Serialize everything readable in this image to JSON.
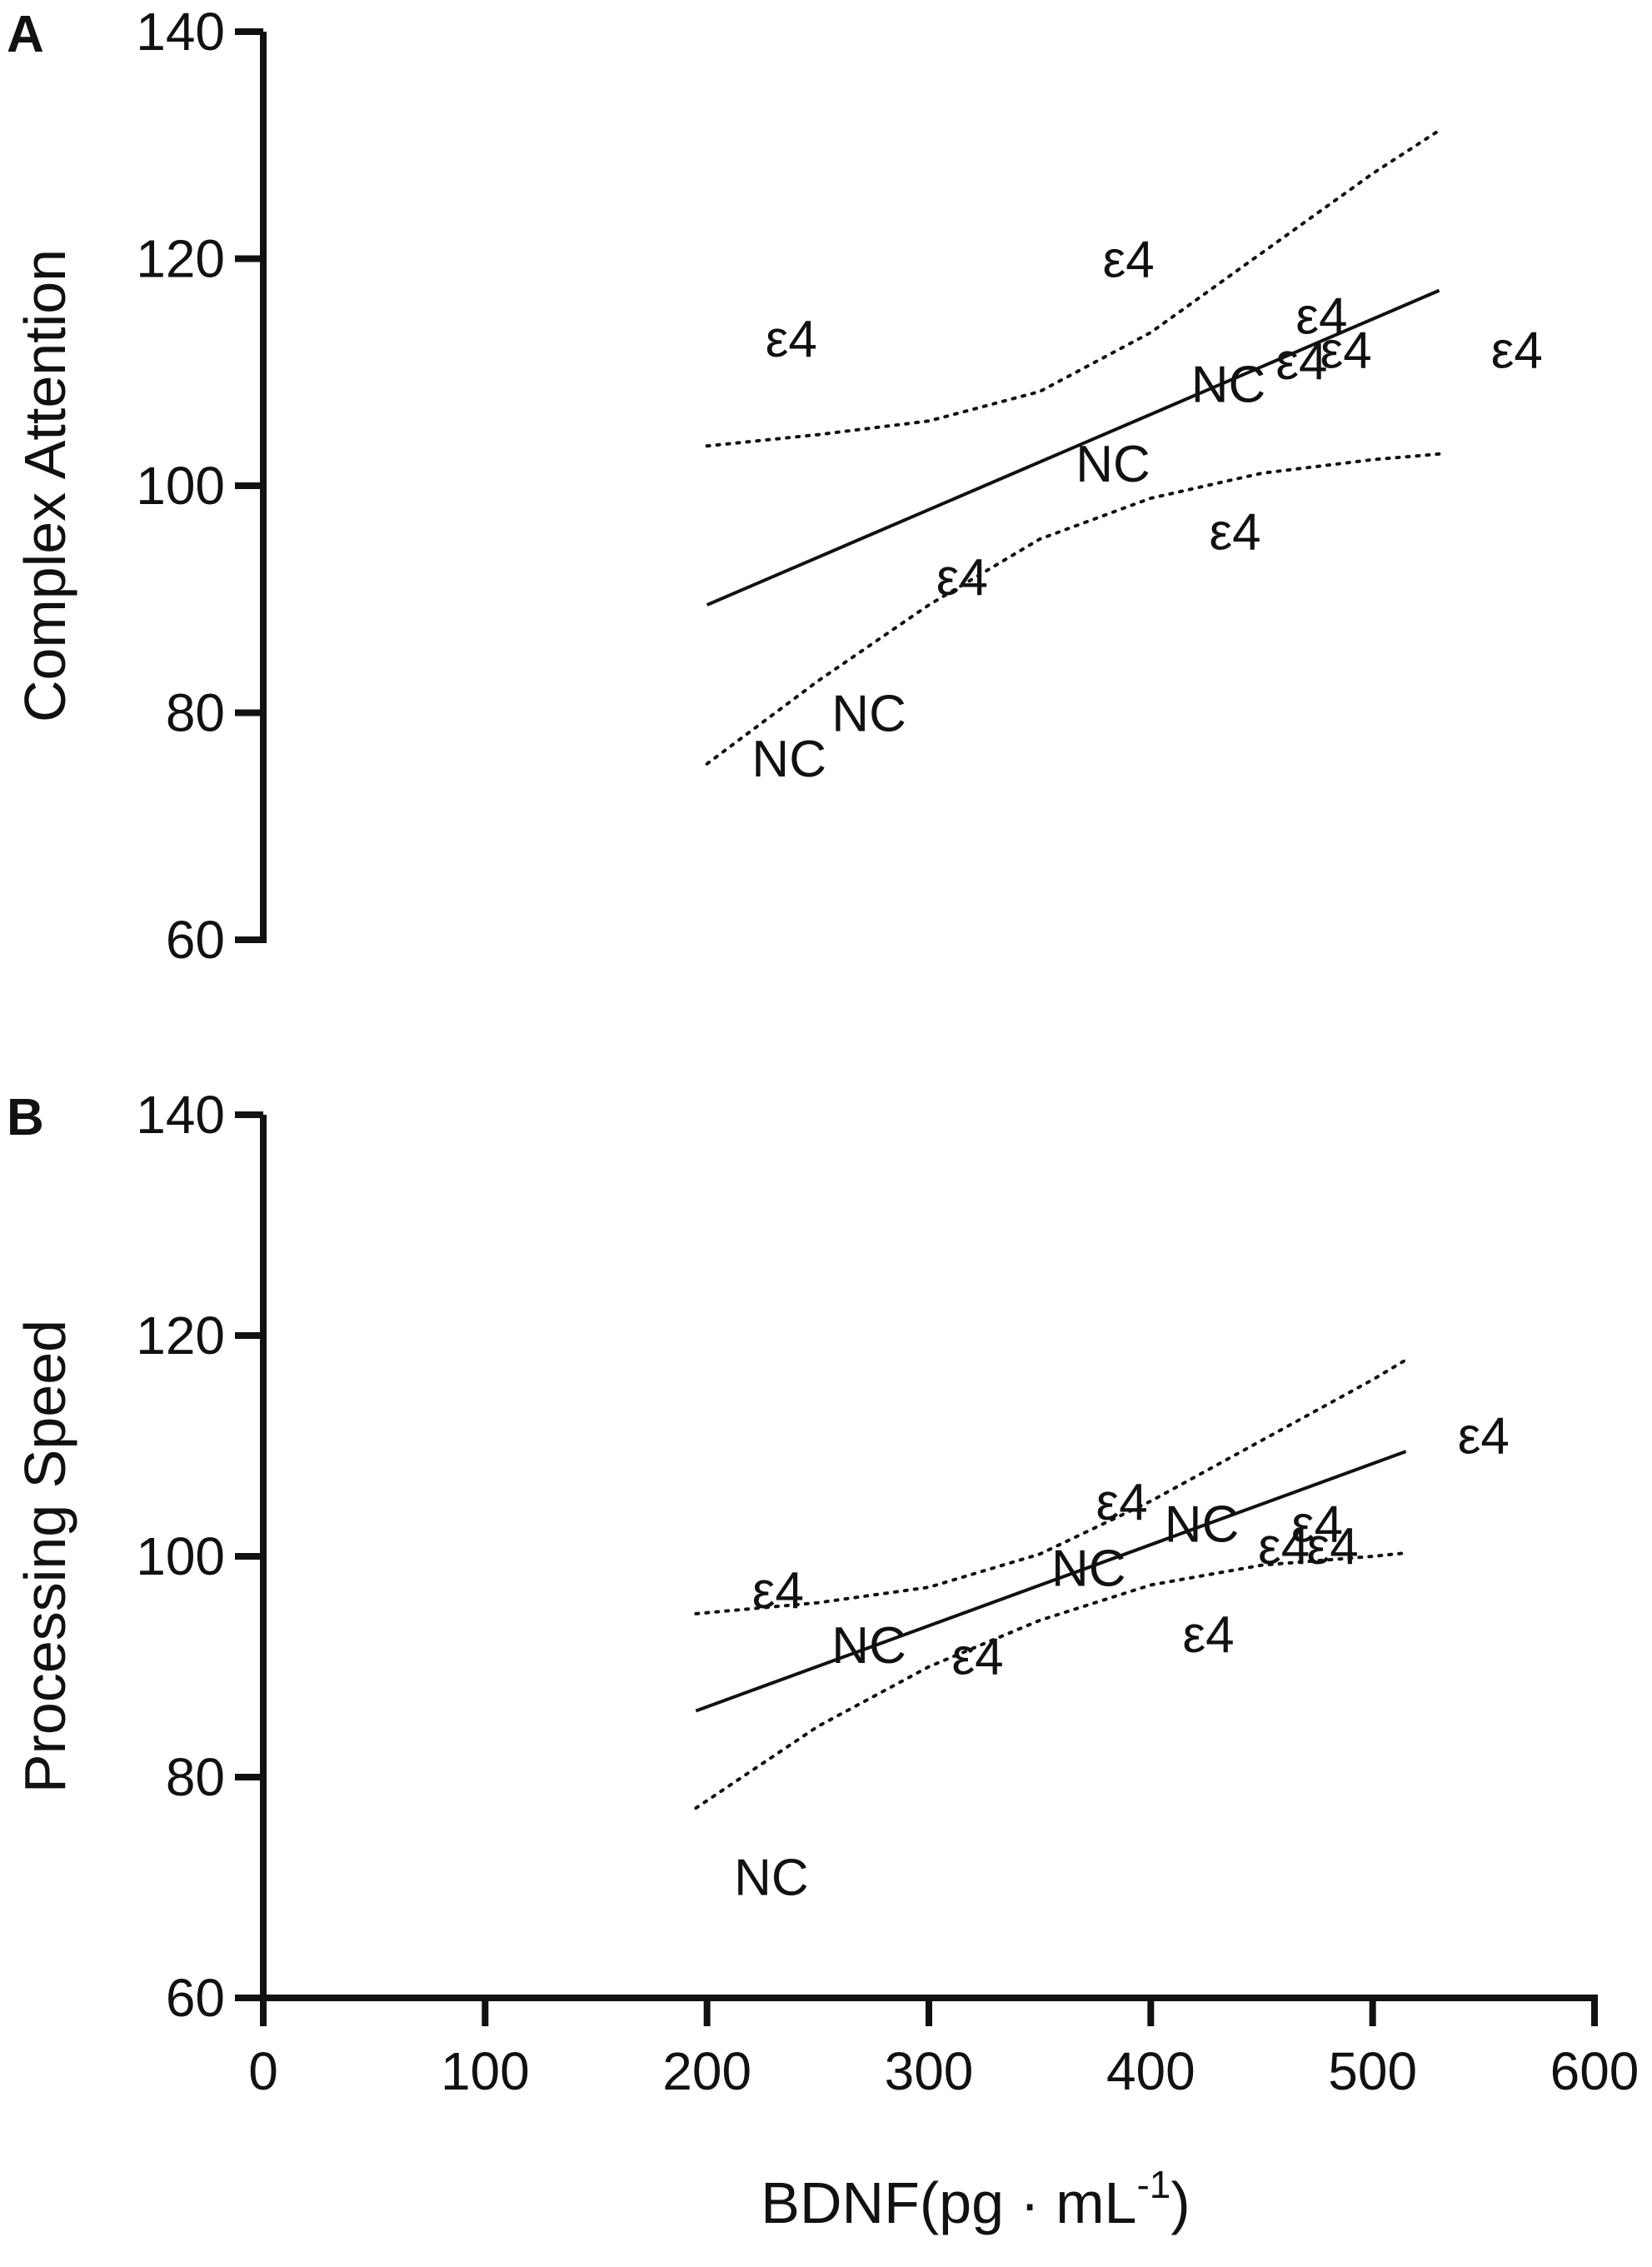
{
  "chart_data": [
    {
      "type": "scatter",
      "panel": "A",
      "title": "",
      "xlabel": "",
      "ylabel": "Complex Attention",
      "xlim": [
        0,
        600
      ],
      "ylim": [
        60,
        140
      ],
      "yticks": [
        "60",
        "80",
        "100",
        "120",
        "140"
      ],
      "show_x_axis": false,
      "grid": false,
      "points": [
        {
          "x": 238,
          "y": 113,
          "label": "ε4"
        },
        {
          "x": 390,
          "y": 120,
          "label": "ε4"
        },
        {
          "x": 477,
          "y": 115,
          "label": "ε4"
        },
        {
          "x": 488,
          "y": 112,
          "label": "ε4"
        },
        {
          "x": 468,
          "y": 111,
          "label": "ε4"
        },
        {
          "x": 565,
          "y": 112,
          "label": "ε4"
        },
        {
          "x": 435,
          "y": 109,
          "label": "NC"
        },
        {
          "x": 383,
          "y": 102,
          "label": "NC"
        },
        {
          "x": 438,
          "y": 96,
          "label": "ε4"
        },
        {
          "x": 315,
          "y": 92,
          "label": "ε4"
        },
        {
          "x": 273,
          "y": 80,
          "label": "NC"
        },
        {
          "x": 237,
          "y": 76,
          "label": "NC"
        }
      ],
      "fit": {
        "x": [
          200,
          530
        ],
        "y": [
          89.5,
          117.2
        ]
      },
      "ci_upper": [
        {
          "x": 200,
          "y": 103.5
        },
        {
          "x": 250,
          "y": 104.5
        },
        {
          "x": 300,
          "y": 105.7
        },
        {
          "x": 350,
          "y": 108.3
        },
        {
          "x": 400,
          "y": 113.5
        },
        {
          "x": 450,
          "y": 120.5
        },
        {
          "x": 500,
          "y": 127.5
        },
        {
          "x": 530,
          "y": 131.3
        }
      ],
      "ci_lower": [
        {
          "x": 200,
          "y": 75.5
        },
        {
          "x": 250,
          "y": 82.8
        },
        {
          "x": 300,
          "y": 89.5
        },
        {
          "x": 350,
          "y": 95.3
        },
        {
          "x": 400,
          "y": 98.9
        },
        {
          "x": 450,
          "y": 101.1
        },
        {
          "x": 500,
          "y": 102.3
        },
        {
          "x": 530,
          "y": 102.8
        }
      ]
    },
    {
      "type": "scatter",
      "panel": "B",
      "title": "",
      "xlabel": "BDNF(pg · mL",
      "xlabel_sup": "-1",
      "xlabel_end": ")",
      "ylabel": "Processing Speed",
      "xlim": [
        0,
        600
      ],
      "ylim": [
        60,
        140
      ],
      "xticks": [
        "0",
        "100",
        "200",
        "300",
        "400",
        "500",
        "600"
      ],
      "yticks": [
        "60",
        "80",
        "100",
        "120",
        "140"
      ],
      "show_x_axis": true,
      "grid": false,
      "points": [
        {
          "x": 550,
          "y": 111,
          "label": "ε4"
        },
        {
          "x": 387,
          "y": 105,
          "label": "ε4"
        },
        {
          "x": 423,
          "y": 103,
          "label": "NC"
        },
        {
          "x": 475,
          "y": 103,
          "label": "ε4"
        },
        {
          "x": 482,
          "y": 101,
          "label": "ε4"
        },
        {
          "x": 460,
          "y": 101,
          "label": "ε4"
        },
        {
          "x": 372,
          "y": 99,
          "label": "NC"
        },
        {
          "x": 232,
          "y": 97,
          "label": "ε4"
        },
        {
          "x": 273,
          "y": 92,
          "label": "NC"
        },
        {
          "x": 322,
          "y": 91,
          "label": "ε4"
        },
        {
          "x": 426,
          "y": 93,
          "label": "ε4"
        },
        {
          "x": 229,
          "y": 71,
          "label": "NC"
        }
      ],
      "fit": {
        "x": [
          195,
          515
        ],
        "y": [
          86,
          109.5
        ]
      },
      "ci_upper": [
        {
          "x": 195,
          "y": 94.8
        },
        {
          "x": 250,
          "y": 95.8
        },
        {
          "x": 300,
          "y": 97.2
        },
        {
          "x": 350,
          "y": 100.2
        },
        {
          "x": 400,
          "y": 105.0
        },
        {
          "x": 450,
          "y": 110.5
        },
        {
          "x": 500,
          "y": 116.0
        },
        {
          "x": 515,
          "y": 117.8
        }
      ],
      "ci_lower": [
        {
          "x": 195,
          "y": 77.2
        },
        {
          "x": 250,
          "y": 84.6
        },
        {
          "x": 300,
          "y": 90.0
        },
        {
          "x": 350,
          "y": 94.2
        },
        {
          "x": 400,
          "y": 97.4
        },
        {
          "x": 450,
          "y": 99.2
        },
        {
          "x": 500,
          "y": 100.0
        },
        {
          "x": 515,
          "y": 100.3
        }
      ]
    }
  ]
}
